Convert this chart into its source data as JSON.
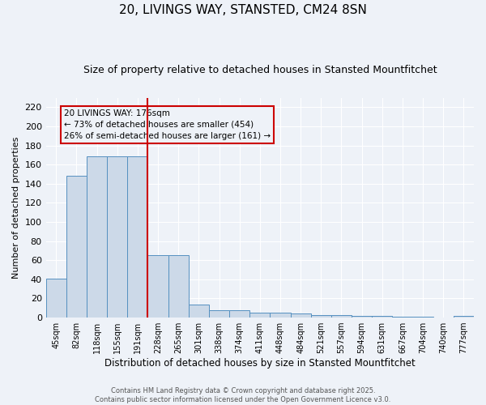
{
  "title": "20, LIVINGS WAY, STANSTED, CM24 8SN",
  "subtitle": "Size of property relative to detached houses in Stansted Mountfitchet",
  "xlabel": "Distribution of detached houses by size in Stansted Mountfitchet",
  "ylabel": "Number of detached properties",
  "categories": [
    "45sqm",
    "82sqm",
    "118sqm",
    "155sqm",
    "191sqm",
    "228sqm",
    "265sqm",
    "301sqm",
    "338sqm",
    "374sqm",
    "411sqm",
    "448sqm",
    "484sqm",
    "521sqm",
    "557sqm",
    "594sqm",
    "631sqm",
    "667sqm",
    "704sqm",
    "740sqm",
    "777sqm"
  ],
  "values": [
    41,
    148,
    169,
    169,
    169,
    65,
    65,
    14,
    8,
    8,
    5,
    5,
    4,
    3,
    3,
    2,
    2,
    1,
    1,
    0,
    2
  ],
  "bar_color": "#ccd9e8",
  "bar_edge_color": "#5590c0",
  "ylim": [
    0,
    230
  ],
  "yticks": [
    0,
    20,
    40,
    60,
    80,
    100,
    120,
    140,
    160,
    180,
    200,
    220
  ],
  "vline_x": 4.5,
  "vline_color": "#cc0000",
  "annotation_text": "20 LIVINGS WAY: 176sqm\n← 73% of detached houses are smaller (454)\n26% of semi-detached houses are larger (161) →",
  "box_color": "#cc0000",
  "bg_color": "#eef2f8",
  "grid_color": "#ffffff",
  "footer": "Contains HM Land Registry data © Crown copyright and database right 2025.\nContains public sector information licensed under the Open Government Licence v3.0.",
  "title_fontsize": 11,
  "subtitle_fontsize": 9,
  "annotation_fontsize": 7.5,
  "ylabel_fontsize": 8,
  "xlabel_fontsize": 8.5
}
